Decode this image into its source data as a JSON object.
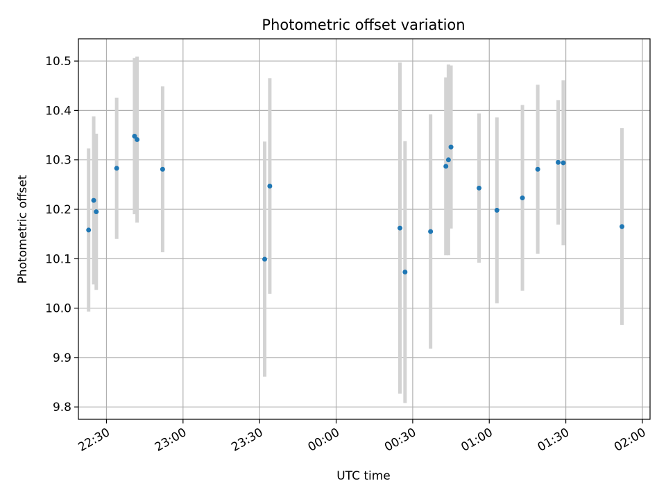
{
  "chart_data": {
    "type": "scatter",
    "title": "Photometric offset variation",
    "xlabel": "UTC time",
    "ylabel": "Photometric offset",
    "x_ticks": [
      "22:30",
      "23:00",
      "23:30",
      "00:00",
      "00:30",
      "01:00",
      "01:30",
      "02:00"
    ],
    "y_ticks": [
      "9.8",
      "9.9",
      "10.0",
      "10.1",
      "10.2",
      "10.3",
      "10.4",
      "10.5"
    ],
    "ylim": [
      9.775,
      10.545
    ],
    "xlim": [
      "22:19",
      "02:03"
    ],
    "grid": true,
    "colors": {
      "point": "#1f77b4",
      "errorbar": "#d3d3d3",
      "grid": "#b0b0b0"
    },
    "points": [
      {
        "time": "22:23",
        "y": 10.158,
        "err": 0.165
      },
      {
        "time": "22:25",
        "y": 10.218,
        "err": 0.17
      },
      {
        "time": "22:26",
        "y": 10.195,
        "err": 0.158
      },
      {
        "time": "22:34",
        "y": 10.283,
        "err": 0.143
      },
      {
        "time": "22:41",
        "y": 10.348,
        "err": 0.158
      },
      {
        "time": "22:42",
        "y": 10.341,
        "err": 0.168
      },
      {
        "time": "22:52",
        "y": 10.281,
        "err": 0.168
      },
      {
        "time": "23:32",
        "y": 10.099,
        "err": 0.238
      },
      {
        "time": "23:34",
        "y": 10.247,
        "err": 0.218
      },
      {
        "time": "00:25",
        "y": 10.162,
        "err": 0.335
      },
      {
        "time": "00:27",
        "y": 10.073,
        "err": 0.265
      },
      {
        "time": "00:37",
        "y": 10.155,
        "err": 0.237
      },
      {
        "time": "00:43",
        "y": 10.287,
        "err": 0.18
      },
      {
        "time": "00:44",
        "y": 10.3,
        "err": 0.193
      },
      {
        "time": "00:45",
        "y": 10.326,
        "err": 0.165
      },
      {
        "time": "00:56",
        "y": 10.243,
        "err": 0.151
      },
      {
        "time": "01:03",
        "y": 10.198,
        "err": 0.188
      },
      {
        "time": "01:13",
        "y": 10.223,
        "err": 0.188
      },
      {
        "time": "01:19",
        "y": 10.281,
        "err": 0.171
      },
      {
        "time": "01:27",
        "y": 10.295,
        "err": 0.126
      },
      {
        "time": "01:29",
        "y": 10.294,
        "err": 0.167
      },
      {
        "time": "01:52",
        "y": 10.165,
        "err": 0.199
      }
    ]
  }
}
